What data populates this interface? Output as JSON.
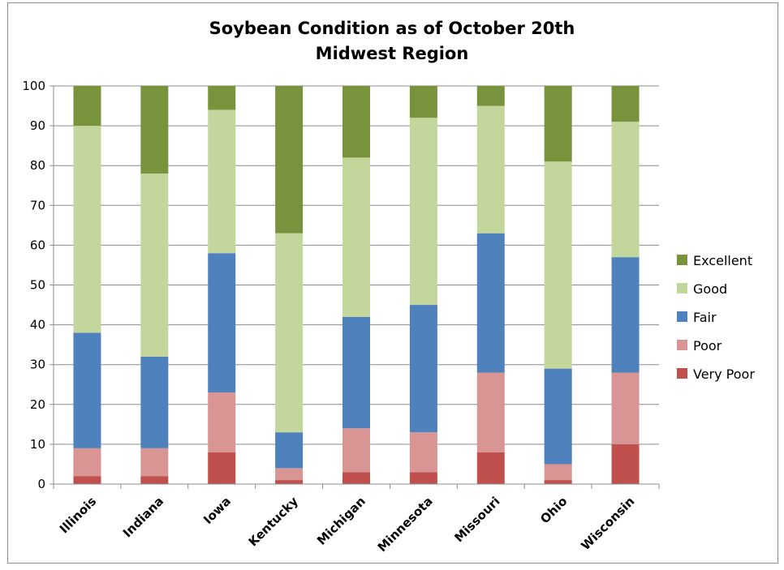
{
  "chart_data": {
    "type": "bar",
    "stacked": true,
    "title": "Soybean Condition as of October 20th",
    "subtitle": "Midwest Region",
    "categories": [
      "Illinois",
      "Indiana",
      "Iowa",
      "Kentucky",
      "Michigan",
      "Minnesota",
      "Missouri",
      "Ohio",
      "Wisconsin"
    ],
    "series": [
      {
        "name": "Very Poor",
        "color": "#c0504d",
        "values": [
          2,
          2,
          8,
          1,
          3,
          3,
          8,
          1,
          10
        ]
      },
      {
        "name": "Poor",
        "color": "#d99594",
        "values": [
          7,
          7,
          15,
          3,
          11,
          10,
          20,
          4,
          18
        ]
      },
      {
        "name": "Fair",
        "color": "#4f81bd",
        "values": [
          29,
          23,
          35,
          9,
          28,
          32,
          35,
          24,
          29
        ]
      },
      {
        "name": "Good",
        "color": "#c3d69b",
        "values": [
          52,
          46,
          36,
          50,
          40,
          47,
          32,
          52,
          34
        ]
      },
      {
        "name": "Excellent",
        "color": "#77933c",
        "values": [
          10,
          22,
          6,
          37,
          18,
          8,
          5,
          19,
          9
        ]
      }
    ],
    "ylim": [
      0,
      100
    ],
    "yticks": [
      0,
      10,
      20,
      30,
      40,
      50,
      60,
      70,
      80,
      90,
      100
    ],
    "grid": true,
    "legend": "right",
    "legend_order": [
      "Excellent",
      "Good",
      "Fair",
      "Poor",
      "Very Poor"
    ]
  }
}
